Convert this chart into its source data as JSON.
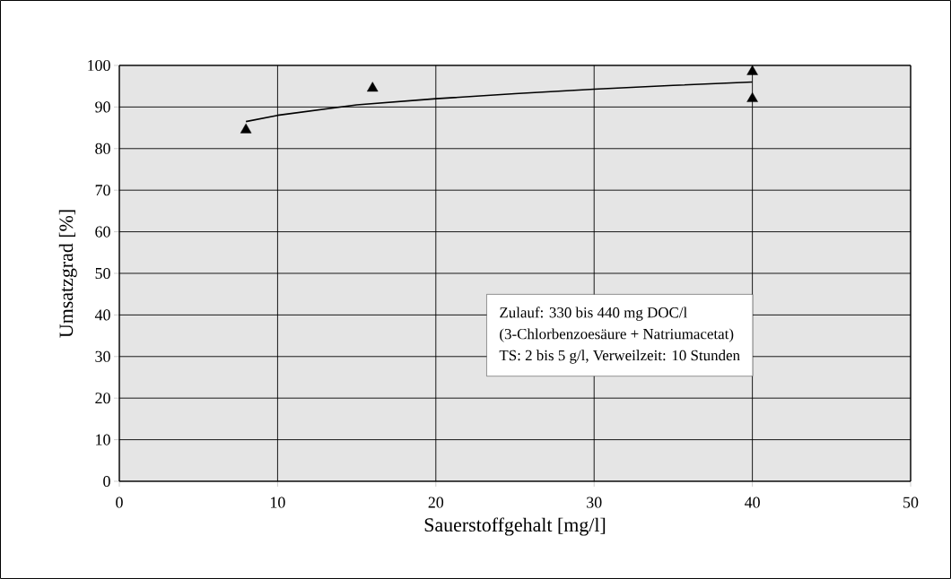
{
  "chart_data": {
    "type": "scatter",
    "xlabel": "Sauerstoffgehalt [mg/l]",
    "ylabel": "Umsatzgrad [%]",
    "xlim": [
      0,
      50
    ],
    "ylim": [
      0,
      100
    ],
    "xticks": [
      0,
      10,
      20,
      30,
      40,
      50
    ],
    "yticks": [
      0,
      10,
      20,
      30,
      40,
      50,
      60,
      70,
      80,
      90,
      100
    ],
    "grid": true,
    "series": [
      {
        "color": "#000000",
        "marker": "triangle",
        "x": [
          8,
          16,
          40,
          40
        ],
        "values": [
          84.5,
          94.5,
          98.5,
          92
        ]
      },
      {
        "type": "line",
        "marker": "none",
        "color": "#000000",
        "x": [
          8,
          10,
          12,
          15,
          20,
          25,
          30,
          35,
          40
        ],
        "values": [
          86.5,
          88,
          89,
          90.5,
          92,
          93.2,
          94.3,
          95.2,
          96
        ]
      }
    ],
    "annotations": [
      "Zulauf: 330 bis 440 mg DOC/l",
      "(3-Chlorbenzoesäure + Natriumacetat)",
      "TS: 2 bis 5 g/l, Verweilzeit: 10 Stunden"
    ]
  }
}
